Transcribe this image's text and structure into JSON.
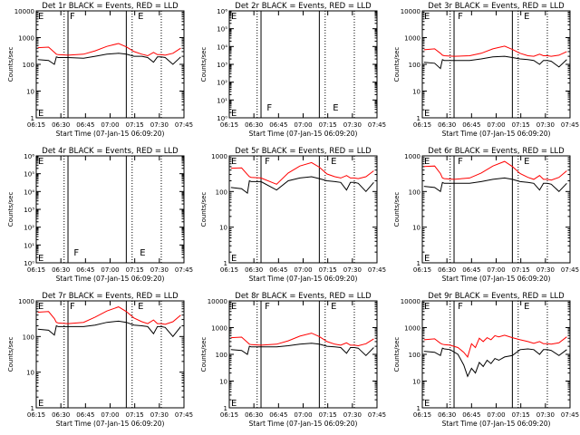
{
  "figure": {
    "colors": {
      "background": "#ffffff",
      "axes": "#000000",
      "events": "#000000",
      "lld": "#ff0000"
    },
    "x_tick_labels": [
      "06:15",
      "06:30",
      "06:45",
      "07:00",
      "07:15",
      "07:30",
      "07:45"
    ],
    "x_label": "Start Time (07-Jan-15 06:09:20)",
    "y_label": "Counts/sec"
  },
  "chart_data": [
    {
      "type": "line",
      "title": "Det 1r BLACK = Events, RED = LLD",
      "scale": "log",
      "ylim": [
        1,
        10000
      ],
      "y_tick_labels": [
        "1",
        "10",
        "100",
        "1000",
        "10000"
      ],
      "x_minutes": [
        6.5,
        12,
        15,
        16,
        17,
        22,
        30,
        36,
        42,
        48,
        52,
        56,
        60,
        63,
        66,
        68,
        70,
        72,
        76,
        80
      ],
      "series": [
        {
          "name": "Events",
          "color": "black",
          "values": [
            150,
            140,
            100,
            190,
            180,
            180,
            170,
            200,
            240,
            260,
            240,
            200,
            200,
            180,
            120,
            190,
            190,
            180,
            100,
            190
          ]
        },
        {
          "name": "LLD",
          "color": "red",
          "values": [
            420,
            440,
            280,
            240,
            230,
            220,
            240,
            320,
            470,
            600,
            450,
            300,
            240,
            210,
            280,
            230,
            230,
            220,
            260,
            400
          ]
        }
      ],
      "markers": {
        "solid": [
          22,
          52
        ],
        "dotted": [
          20,
          55,
          70
        ],
        "letters": [
          {
            "t": "F",
            "x": 22
          },
          {
            "t": "E",
            "x": 57
          }
        ]
      }
    },
    {
      "type": "line",
      "title": "Det 2r BLACK = Events, RED = LLD",
      "scale": "log",
      "ylim": [
        1,
        1000000
      ],
      "y_tick_labels": [
        "10⁰",
        "10¹",
        "10²",
        "10³",
        "10⁴",
        "10⁵",
        "10⁶"
      ],
      "x_minutes": [],
      "series": [],
      "markers": {
        "solid": [
          22,
          52
        ],
        "dotted": [
          20,
          55,
          70
        ],
        "letters": [
          {
            "t": "F",
            "x": 24
          },
          {
            "t": "E",
            "x": 58
          }
        ]
      }
    },
    {
      "type": "line",
      "title": "Det 3r BLACK = Events, RED = LLD",
      "scale": "log",
      "ylim": [
        1,
        10000
      ],
      "y_tick_labels": [
        "1",
        "10",
        "100",
        "1000",
        "10000"
      ],
      "x_minutes": [
        6.5,
        12,
        15,
        16,
        17,
        22,
        30,
        36,
        42,
        48,
        52,
        56,
        60,
        63,
        66,
        68,
        70,
        72,
        76,
        80
      ],
      "series": [
        {
          "name": "Events",
          "color": "black",
          "values": [
            120,
            110,
            70,
            150,
            140,
            140,
            140,
            160,
            190,
            200,
            180,
            160,
            150,
            140,
            100,
            140,
            140,
            130,
            80,
            150
          ]
        },
        {
          "name": "LLD",
          "color": "red",
          "values": [
            350,
            380,
            260,
            220,
            210,
            200,
            210,
            260,
            380,
            480,
            360,
            260,
            210,
            200,
            240,
            210,
            210,
            200,
            220,
            300
          ]
        }
      ],
      "markers": {
        "solid": [
          22,
          52
        ],
        "dotted": [
          20,
          55,
          70
        ],
        "letters": [
          {
            "t": "F",
            "x": 23
          },
          {
            "t": "E",
            "x": 57
          }
        ]
      }
    },
    {
      "type": "line",
      "title": "Det 4r BLACK = Events, RED = LLD",
      "scale": "log",
      "ylim": [
        1,
        1000000
      ],
      "y_tick_labels": [
        "10⁰",
        "10¹",
        "10²",
        "10³",
        "10⁴",
        "10⁵",
        "10⁶"
      ],
      "x_minutes": [],
      "series": [],
      "markers": {
        "solid": [
          22,
          52
        ],
        "dotted": [
          20,
          55,
          70
        ],
        "letters": [
          {
            "t": "F",
            "x": 24
          },
          {
            "t": "E",
            "x": 58
          }
        ]
      }
    },
    {
      "type": "line",
      "title": "Det 5r BLACK = Events, RED = LLD",
      "scale": "log",
      "ylim": [
        1,
        1000
      ],
      "y_tick_labels": [
        "1",
        "10",
        "100",
        "1000"
      ],
      "x_minutes": [
        6.5,
        12,
        15,
        16,
        17,
        22,
        30,
        36,
        42,
        48,
        52,
        56,
        60,
        63,
        66,
        68,
        70,
        72,
        76,
        80
      ],
      "series": [
        {
          "name": "Events",
          "color": "black",
          "values": [
            130,
            120,
            90,
            200,
            190,
            190,
            110,
            200,
            240,
            260,
            230,
            200,
            190,
            180,
            110,
            180,
            180,
            170,
            100,
            180
          ]
        },
        {
          "name": "LLD",
          "color": "red",
          "values": [
            450,
            460,
            300,
            260,
            250,
            240,
            160,
            330,
            520,
            650,
            480,
            310,
            260,
            240,
            280,
            240,
            240,
            230,
            260,
            380
          ]
        }
      ],
      "markers": {
        "solid": [
          22,
          52
        ],
        "dotted": [
          20,
          55,
          70
        ],
        "letters": [
          {
            "t": "F",
            "x": 23
          },
          {
            "t": "E",
            "x": 57
          }
        ]
      }
    },
    {
      "type": "line",
      "title": "Det 6r BLACK = Events, RED = LLD",
      "scale": "log",
      "ylim": [
        1,
        1000
      ],
      "y_tick_labels": [
        "1",
        "10",
        "100",
        "1000"
      ],
      "x_minutes": [
        6.5,
        12,
        15,
        16,
        17,
        22,
        30,
        36,
        42,
        48,
        52,
        56,
        60,
        63,
        66,
        68,
        70,
        72,
        76,
        80
      ],
      "series": [
        {
          "name": "Events",
          "color": "black",
          "values": [
            140,
            130,
            100,
            180,
            170,
            170,
            170,
            190,
            220,
            240,
            220,
            190,
            180,
            170,
            110,
            170,
            170,
            160,
            100,
            170
          ]
        },
        {
          "name": "LLD",
          "color": "red",
          "values": [
            500,
            520,
            320,
            240,
            230,
            220,
            240,
            330,
            520,
            700,
            500,
            320,
            250,
            220,
            280,
            220,
            220,
            210,
            250,
            380
          ]
        }
      ],
      "markers": {
        "solid": [
          22,
          52
        ],
        "dotted": [
          20,
          55,
          70
        ],
        "letters": [
          {
            "t": "F",
            "x": 23
          },
          {
            "t": "E",
            "x": 57
          }
        ]
      }
    },
    {
      "type": "line",
      "title": "Det 7r BLACK = Events, RED = LLD",
      "scale": "log",
      "ylim": [
        1,
        1000
      ],
      "y_tick_labels": [
        "1",
        "10",
        "100",
        "1000"
      ],
      "x_minutes": [
        6.5,
        12,
        15,
        16,
        17,
        22,
        30,
        36,
        42,
        48,
        52,
        56,
        60,
        63,
        66,
        68,
        70,
        72,
        76,
        80
      ],
      "series": [
        {
          "name": "Events",
          "color": "black",
          "values": [
            160,
            150,
            110,
            200,
            190,
            190,
            190,
            210,
            250,
            270,
            250,
            210,
            200,
            190,
            120,
            190,
            190,
            180,
            100,
            190
          ]
        },
        {
          "name": "LLD",
          "color": "red",
          "values": [
            480,
            500,
            320,
            250,
            240,
            230,
            250,
            350,
            520,
            680,
            500,
            330,
            260,
            230,
            290,
            230,
            230,
            220,
            260,
            400
          ]
        }
      ],
      "markers": {
        "solid": [
          22,
          52
        ],
        "dotted": [
          20,
          55,
          70
        ],
        "letters": [
          {
            "t": "F",
            "x": 22
          },
          {
            "t": "E",
            "x": 57
          }
        ]
      }
    },
    {
      "type": "line",
      "title": "Det 8r BLACK = Events, RED = LLD",
      "scale": "log",
      "ylim": [
        1,
        10000
      ],
      "y_tick_labels": [
        "1",
        "10",
        "100",
        "1000",
        "10000"
      ],
      "x_minutes": [
        6.5,
        12,
        15,
        16,
        17,
        22,
        30,
        36,
        42,
        48,
        52,
        56,
        60,
        63,
        66,
        68,
        70,
        72,
        76,
        80
      ],
      "series": [
        {
          "name": "Events",
          "color": "black",
          "values": [
            150,
            140,
            100,
            200,
            190,
            190,
            190,
            210,
            240,
            260,
            240,
            200,
            190,
            180,
            110,
            180,
            180,
            170,
            90,
            180
          ]
        },
        {
          "name": "LLD",
          "color": "red",
          "values": [
            420,
            440,
            280,
            240,
            230,
            220,
            240,
            320,
            480,
            620,
            460,
            300,
            240,
            220,
            270,
            220,
            220,
            210,
            250,
            380
          ]
        }
      ],
      "markers": {
        "solid": [
          22,
          52
        ],
        "dotted": [
          20,
          55,
          70
        ],
        "letters": [
          {
            "t": "F",
            "x": 23
          },
          {
            "t": "E",
            "x": 57
          }
        ]
      }
    },
    {
      "type": "line",
      "title": "Det 9r BLACK = Events, RED = LLD",
      "scale": "log",
      "ylim": [
        1,
        10000
      ],
      "y_tick_labels": [
        "1",
        "10",
        "100",
        "1000",
        "10000"
      ],
      "x_minutes": [
        6.5,
        12,
        15,
        16,
        17,
        20,
        24,
        27,
        29,
        31,
        33,
        35,
        37,
        39,
        41,
        43,
        45,
        48,
        52,
        56,
        60,
        63,
        66,
        68,
        70,
        72,
        76,
        80
      ],
      "series": [
        {
          "name": "Events",
          "color": "black",
          "values": [
            130,
            120,
            90,
            170,
            160,
            150,
            100,
            40,
            15,
            30,
            20,
            50,
            35,
            60,
            45,
            70,
            60,
            80,
            90,
            150,
            160,
            150,
            100,
            150,
            150,
            140,
            90,
            150
          ]
        },
        {
          "name": "LLD",
          "color": "red",
          "values": [
            350,
            380,
            260,
            240,
            230,
            220,
            180,
            120,
            80,
            250,
            180,
            400,
            300,
            420,
            350,
            500,
            450,
            520,
            420,
            350,
            300,
            260,
            300,
            250,
            250,
            240,
            270,
            450
          ]
        }
      ],
      "markers": {
        "solid": [
          22,
          52
        ],
        "dotted": [
          20,
          55,
          70
        ],
        "letters": [
          {
            "t": "F",
            "x": 23
          },
          {
            "t": "E",
            "x": 57
          }
        ]
      }
    }
  ]
}
